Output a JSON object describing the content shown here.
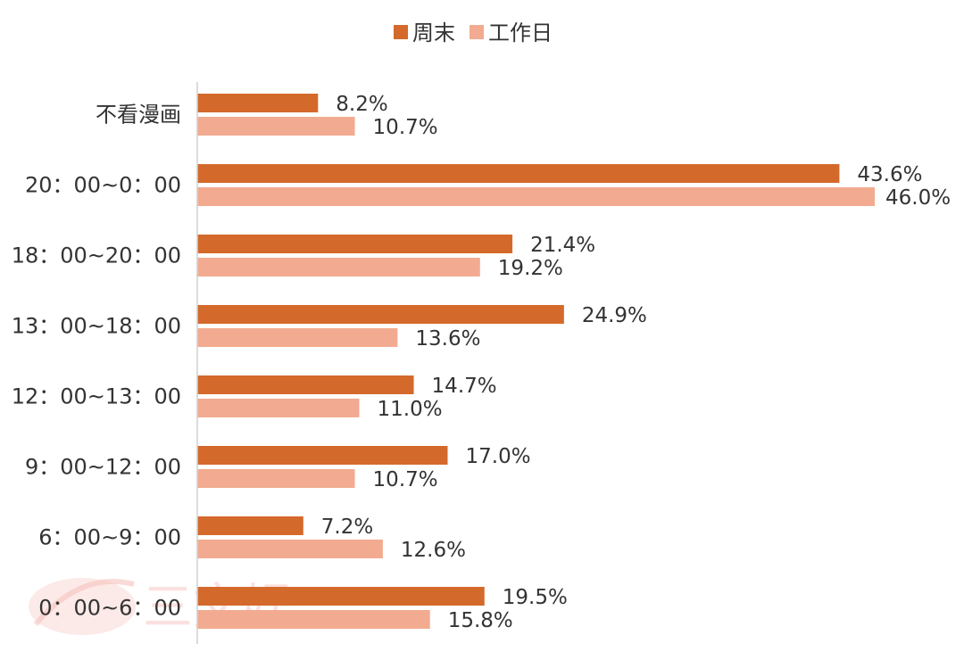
{
  "chart_data": {
    "type": "bar",
    "orientation": "horizontal",
    "categories": [
      "不看漫画",
      "20：00~0：00",
      "18：00~20：00",
      "13：00~18：00",
      "12：00~13：00",
      "9：00~12：00",
      "6：00~9：00",
      "0：00~6：00"
    ],
    "series": [
      {
        "name": "周末",
        "color": "#d4692c",
        "values": [
          8.2,
          43.6,
          21.4,
          24.9,
          14.7,
          17.0,
          7.2,
          19.5
        ],
        "labels": [
          "8.2%",
          "43.6%",
          "21.4%",
          "24.9%",
          "14.7%",
          "17.0%",
          "7.2%",
          "19.5%"
        ]
      },
      {
        "name": "工作日",
        "color": "#f2ab90",
        "values": [
          10.7,
          46.0,
          19.2,
          13.6,
          11.0,
          10.7,
          12.6,
          15.8
        ],
        "labels": [
          "10.7%",
          "46.0%",
          "19.2%",
          "13.6%",
          "11.0%",
          "10.7%",
          "12.6%",
          "15.8%"
        ]
      }
    ],
    "xlim": [
      0,
      46.0
    ],
    "grid": false,
    "legend": "top-center"
  },
  "watermark": {
    "text": "三文娱"
  }
}
